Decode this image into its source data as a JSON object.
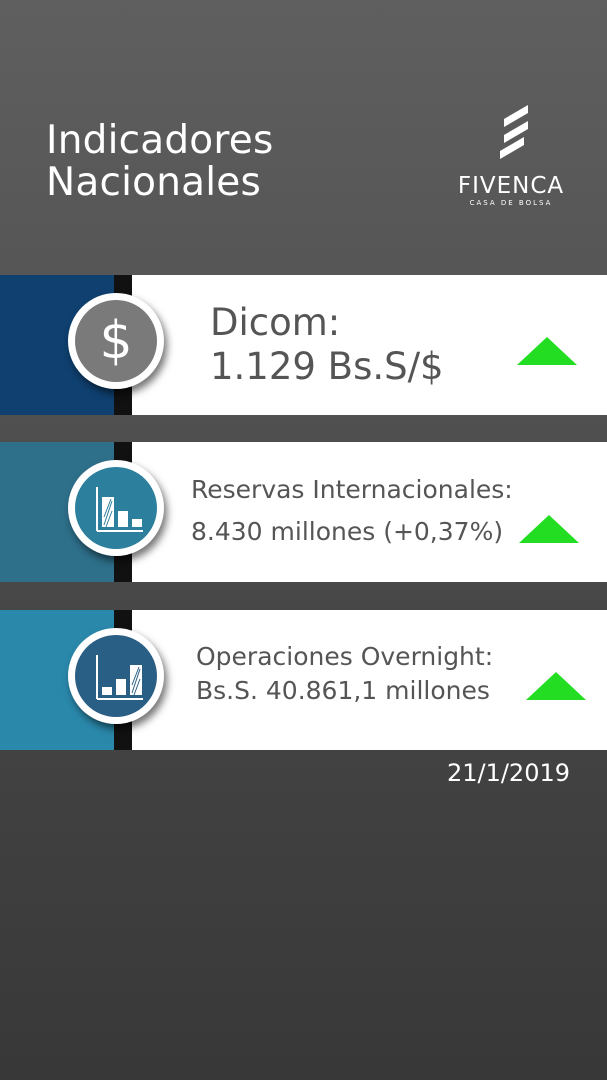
{
  "header": {
    "title_line1": "Indicadores",
    "title_line2": "Nacionales"
  },
  "logo": {
    "name": "FIVENCA",
    "tagline": "CASA DE BOLSA"
  },
  "indicators": [
    {
      "icon": "dollar-icon",
      "label": "Dicom:",
      "value": "1.129 Bs.S/$",
      "trend": "up",
      "strip_color": "#0f4070",
      "icon_color": "#7a7a7a"
    },
    {
      "icon": "bar-chart-icon",
      "label": "Reservas Internacionales:",
      "value": "8.430 millones (+0,37%)",
      "trend": "up",
      "strip_color": "#2e6f8a",
      "icon_color": "#2d7f9e"
    },
    {
      "icon": "bar-chart-icon",
      "label": "Operaciones Overnight:",
      "value": "Bs.S. 40.861,1 millones",
      "trend": "up",
      "strip_color": "#2a88ab",
      "icon_color": "#2a5f85"
    }
  ],
  "trend_color": "#22dd22",
  "date": "21/1/2019"
}
